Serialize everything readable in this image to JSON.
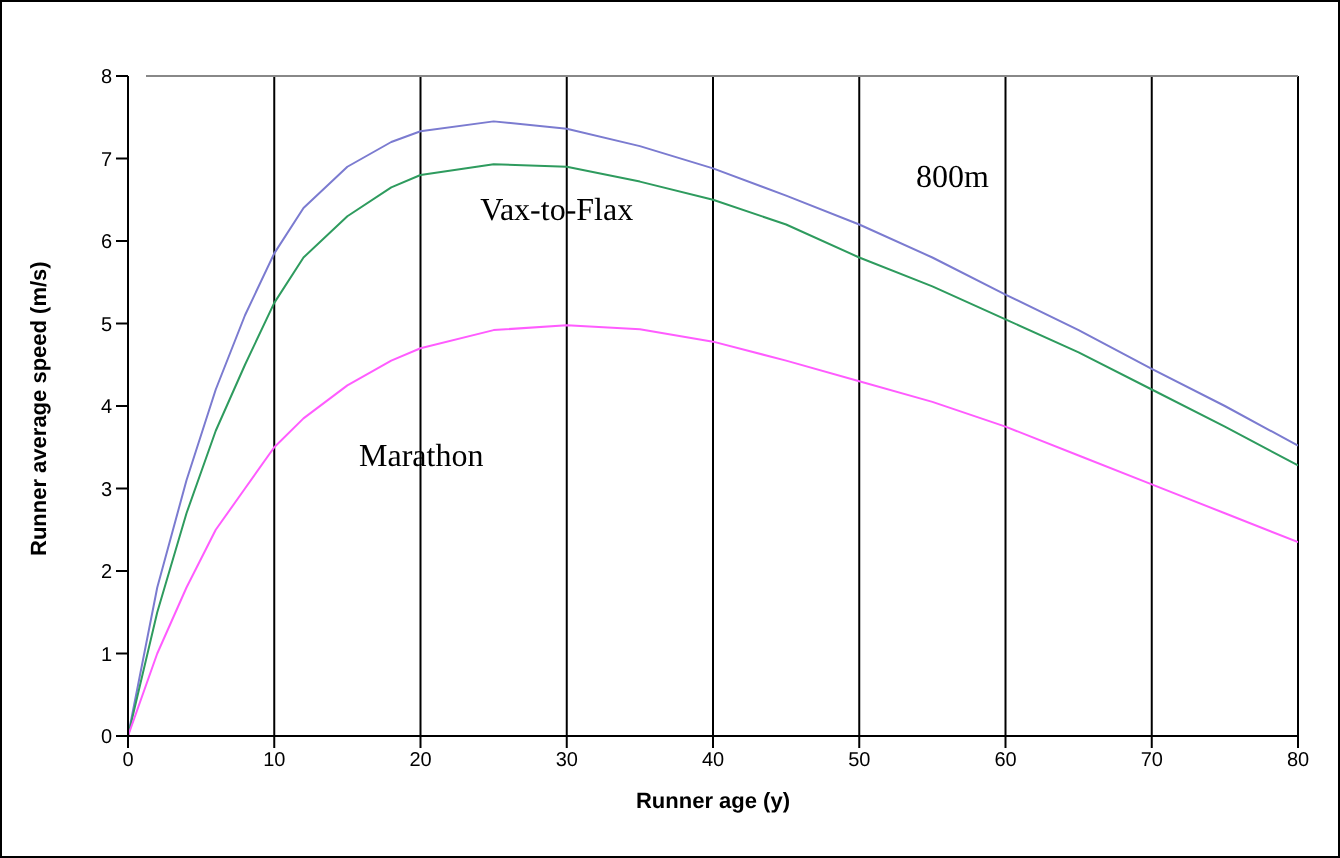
{
  "chart_data": {
    "type": "line",
    "xlabel": "Runner age (y)",
    "ylabel": "Runner average speed (m/s)",
    "x": [
      0,
      2,
      4,
      6,
      8,
      10,
      12,
      15,
      18,
      20,
      25,
      30,
      35,
      40,
      45,
      50,
      55,
      60,
      65,
      70,
      75,
      80
    ],
    "series": [
      {
        "name": "800m",
        "color": "#7b7bd0",
        "values": [
          0,
          1.8,
          3.1,
          4.2,
          5.1,
          5.85,
          6.4,
          6.9,
          7.2,
          7.33,
          7.45,
          7.36,
          7.15,
          6.88,
          6.55,
          6.2,
          5.8,
          5.35,
          4.92,
          4.45,
          4.0,
          3.52
        ]
      },
      {
        "name": "Vax-to-Flax",
        "color": "#2e9b5e",
        "values": [
          0,
          1.5,
          2.7,
          3.7,
          4.5,
          5.25,
          5.8,
          6.3,
          6.65,
          6.8,
          6.93,
          6.9,
          6.72,
          6.5,
          6.2,
          5.8,
          5.45,
          5.05,
          4.65,
          4.2,
          3.75,
          3.28
        ]
      },
      {
        "name": "Marathon",
        "color": "#ff5cff",
        "values": [
          0,
          1.0,
          1.8,
          2.5,
          3.0,
          3.5,
          3.85,
          4.25,
          4.55,
          4.7,
          4.92,
          4.98,
          4.93,
          4.78,
          4.55,
          4.3,
          4.05,
          3.75,
          3.4,
          3.05,
          2.7,
          2.35
        ]
      }
    ],
    "xlim": [
      0,
      80
    ],
    "xticks": [
      0,
      10,
      20,
      30,
      40,
      50,
      60,
      70,
      80
    ],
    "ylim": [
      0,
      8
    ],
    "yticks": [
      0,
      1,
      2,
      3,
      4,
      5,
      6,
      7,
      8
    ],
    "grid": "x",
    "legend": false,
    "marker": "none",
    "line_style": "solid"
  }
}
